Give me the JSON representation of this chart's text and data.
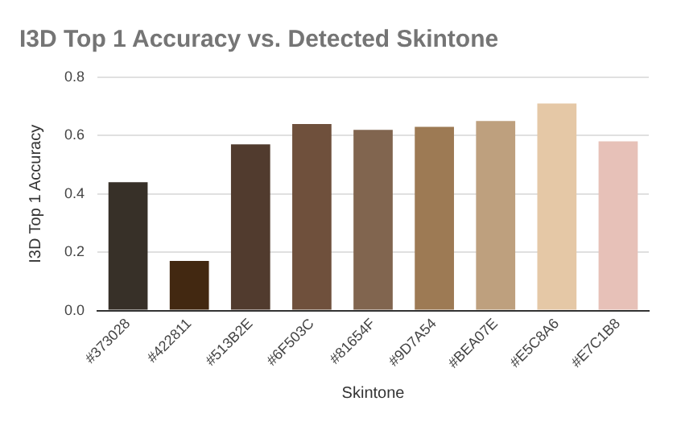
{
  "chart_data": {
    "type": "bar",
    "title": "I3D Top 1 Accuracy vs. Detected Skintone",
    "xlabel": "Skintone",
    "ylabel": "I3D Top 1 Accuracy",
    "categories": [
      "#373028",
      "#422811",
      "#513B2E",
      "#6F503C",
      "#81654F",
      "#9D7A54",
      "#BEA07E",
      "#E5C8A6",
      "#E7C1B8"
    ],
    "values": [
      0.44,
      0.17,
      0.57,
      0.64,
      0.62,
      0.63,
      0.65,
      0.71,
      0.58
    ],
    "colors": [
      "#373028",
      "#422811",
      "#513b2e",
      "#6f503c",
      "#81654f",
      "#9d7a54",
      "#bea07e",
      "#e5c8a6",
      "#e7c1b8"
    ],
    "ylim": [
      0,
      0.8
    ],
    "yticks": [
      {
        "value": 0,
        "label": "0.0"
      },
      {
        "value": 0.2,
        "label": "0.2"
      },
      {
        "value": 0.4,
        "label": "0.4"
      },
      {
        "value": 0.6,
        "label": "0.6"
      },
      {
        "value": 0.8,
        "label": "0.8"
      }
    ],
    "grid": "y"
  }
}
